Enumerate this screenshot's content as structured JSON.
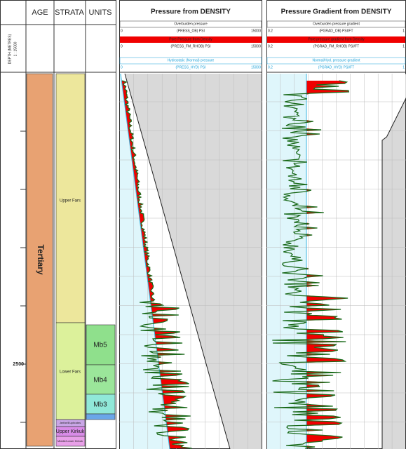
{
  "columns": {
    "depth": [
      "DEPTH (METRES)",
      "1 : 15000"
    ],
    "age": "AGE",
    "strata": "STRATA",
    "units": "UNITS"
  },
  "tracks": [
    {
      "title": "Pressure from DENSITY",
      "curves": [
        {
          "label": "Overburden pressure",
          "mnemonic": "(PRESS_OB) PSI",
          "min": "0",
          "max": "15000"
        },
        {
          "label": "Pore Pressure from Density",
          "mnemonic": "(PRESS_FM_RHOB) PSI",
          "min": "0",
          "max": "15000"
        },
        {
          "label": "Hydrostatic (Normal) pressure",
          "mnemonic": "(PRESS_HYD) PSI",
          "min": "0",
          "max": "15000"
        }
      ]
    },
    {
      "title": "Pressure Gradient from DENSITY",
      "curves": [
        {
          "label": "Overburden pressure gradient",
          "mnemonic": "(PGRAD_OB) PSI/FT",
          "min": "0.2",
          "max": "1"
        },
        {
          "label": "Pore pressure gradient from Density",
          "mnemonic": "(PGRAD_FM_RHOB) PSI/FT",
          "min": "0.2",
          "max": "1"
        },
        {
          "label": "Normal/Hyd. pressure gradient",
          "mnemonic": "(PGRAD_HYD) PSI/FT",
          "min": "0.2",
          "max": "1"
        }
      ]
    }
  ],
  "age": "Tertiary",
  "strata": [
    "Upper Fars",
    "Lower Fars",
    "Jeribe/Euphrates",
    "Upper Kirkuk",
    "Middle/Lower Kirkuk"
  ],
  "units": [
    "Mb5",
    "Mb4",
    "Mb3"
  ],
  "depth_label": "2500"
}
